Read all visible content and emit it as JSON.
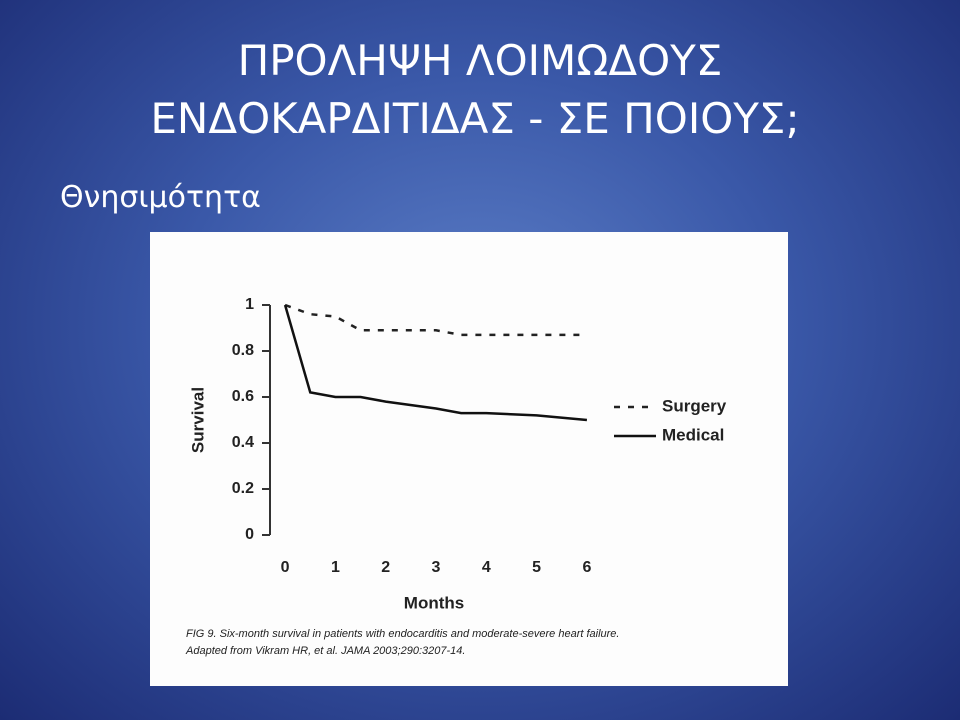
{
  "slide": {
    "title": [
      "ΠΡΟΛΗΨΗ  ΛΟΙΜΩΔΟΥΣ",
      "ΕΝΔΟΚΑΡΔΙΤΙΔΑΣ  - ΣΕ ΠΟΙΟΥΣ;"
    ],
    "subtitle": "Θνησιμότητα"
  },
  "chart_data": {
    "type": "line",
    "x_label": "Months",
    "y_label": "Survival",
    "caption": [
      "FIG 9. Six-month survival in patients with endocarditis and moderate-severe heart failure.",
      "Adapted from Vikram HR, et al. JAMA 2003;290:3207-14."
    ],
    "x": [
      0,
      0.5,
      1,
      1.5,
      2,
      3,
      3.5,
      4,
      5,
      6
    ],
    "series": [
      {
        "name": "Surgery",
        "color": "#222222",
        "line_style": "dashed",
        "values": [
          1,
          0.96,
          0.95,
          0.89,
          0.89,
          0.89,
          0.87,
          0.87,
          0.87,
          0.87
        ]
      },
      {
        "name": "Medical",
        "color": "#111111",
        "line_style": "solid",
        "values": [
          1,
          0.62,
          0.6,
          0.6,
          0.58,
          0.55,
          0.53,
          0.53,
          0.52,
          0.5
        ]
      }
    ],
    "xlim": [
      -0.3,
      6.3
    ],
    "xticks": [
      0,
      1,
      2,
      3,
      4,
      5,
      6
    ],
    "ylim": [
      0,
      1
    ],
    "yticks": [
      0,
      0.2,
      0.4,
      0.6,
      0.8,
      1
    ],
    "grid": false,
    "legend": "right"
  }
}
